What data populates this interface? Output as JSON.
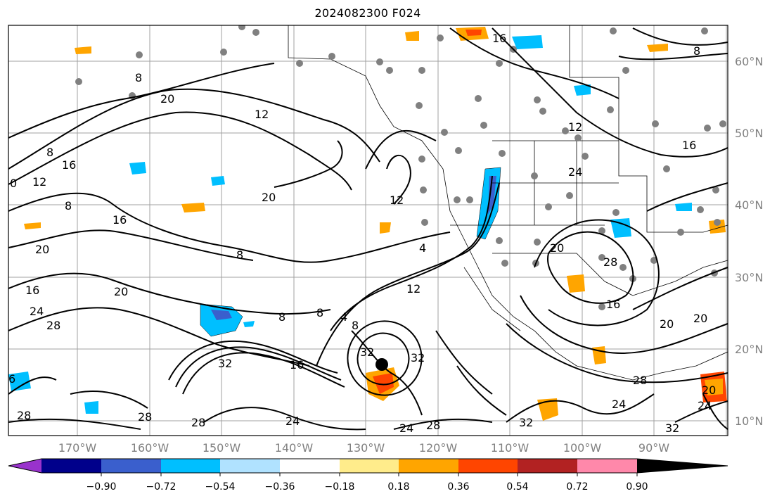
{
  "title": "2024082300 F024",
  "map": {
    "longitude_labels": [
      "170°W",
      "160°W",
      "150°W",
      "140°W",
      "130°W",
      "120°W",
      "110°W",
      "100°W",
      "90°W"
    ],
    "latitude_labels": [
      "60°N",
      "50°N",
      "40°N",
      "30°N",
      "20°N",
      "10°N"
    ],
    "contour_labels": [
      "16",
      "8",
      "8",
      "20",
      "12",
      "8",
      "20",
      "12",
      "16",
      "0",
      "12",
      "8",
      "16",
      "20",
      "20",
      "8",
      "4",
      "12",
      "16",
      "24",
      "28",
      "20",
      "8",
      "8",
      "4",
      "8",
      "32",
      "32",
      "16",
      "32",
      "24",
      "28",
      "28",
      "28",
      "24",
      "32",
      "28",
      "24",
      "20",
      "20",
      "28",
      "16",
      "24",
      "20",
      "16",
      "12",
      "24",
      "6",
      "28",
      "32"
    ],
    "colors": {
      "land_gray": "#808080",
      "contour": "#000000",
      "grid": "#a0a0a0"
    }
  },
  "colorbar": {
    "ticks": [
      "−0.90",
      "−0.72",
      "−0.54",
      "−0.36",
      "−0.18",
      "0.18",
      "0.36",
      "0.54",
      "0.72",
      "0.90"
    ],
    "colors": [
      "#9932cc",
      "#00008b",
      "#3a5fcd",
      "#00bfff",
      "#b0e2ff",
      "#ffffff",
      "#ffec8b",
      "#ffa500",
      "#ff4500",
      "#b22222",
      "#ff88aa"
    ]
  }
}
